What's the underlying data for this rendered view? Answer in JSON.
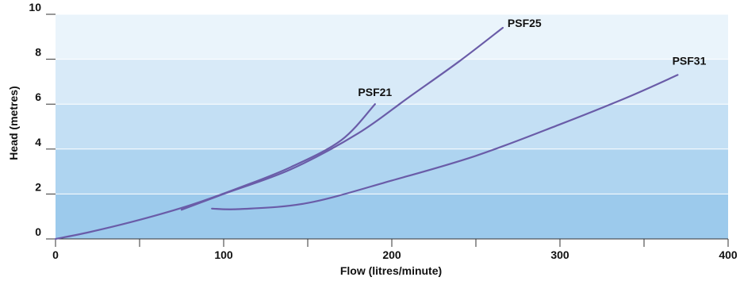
{
  "chart_data": {
    "type": "line",
    "title": "",
    "xlabel": "Flow (litres/minute)",
    "ylabel": "Head (metres)",
    "xlim": [
      0,
      400
    ],
    "ylim": [
      0,
      10
    ],
    "x_ticks": [
      "0",
      "100",
      "200",
      "300",
      "400"
    ],
    "y_ticks": [
      "0",
      "2",
      "4",
      "6",
      "8",
      "10"
    ],
    "grid": true,
    "background_bands": [
      "#9ccaec",
      "#aed4f0",
      "#c3dff4",
      "#d8eaf8",
      "#eaf4fb"
    ],
    "line_color": "#6a5ca8",
    "series": [
      {
        "name": "PSF21",
        "points": [
          [
            0,
            0
          ],
          [
            20,
            0.3
          ],
          [
            50,
            0.85
          ],
          [
            80,
            1.5
          ],
          [
            110,
            2.3
          ],
          [
            140,
            3.2
          ],
          [
            170,
            4.4
          ],
          [
            190,
            6.0
          ]
        ]
      },
      {
        "name": "PSF25",
        "points": [
          [
            75,
            1.3
          ],
          [
            100,
            2.0
          ],
          [
            140,
            3.1
          ],
          [
            180,
            4.7
          ],
          [
            210,
            6.3
          ],
          [
            240,
            7.9
          ],
          [
            266,
            9.4
          ]
        ]
      },
      {
        "name": "PSF31",
        "points": [
          [
            93,
            1.35
          ],
          [
            110,
            1.33
          ],
          [
            150,
            1.6
          ],
          [
            200,
            2.6
          ],
          [
            250,
            3.7
          ],
          [
            300,
            5.1
          ],
          [
            340,
            6.3
          ],
          [
            370,
            7.3
          ]
        ]
      }
    ]
  }
}
